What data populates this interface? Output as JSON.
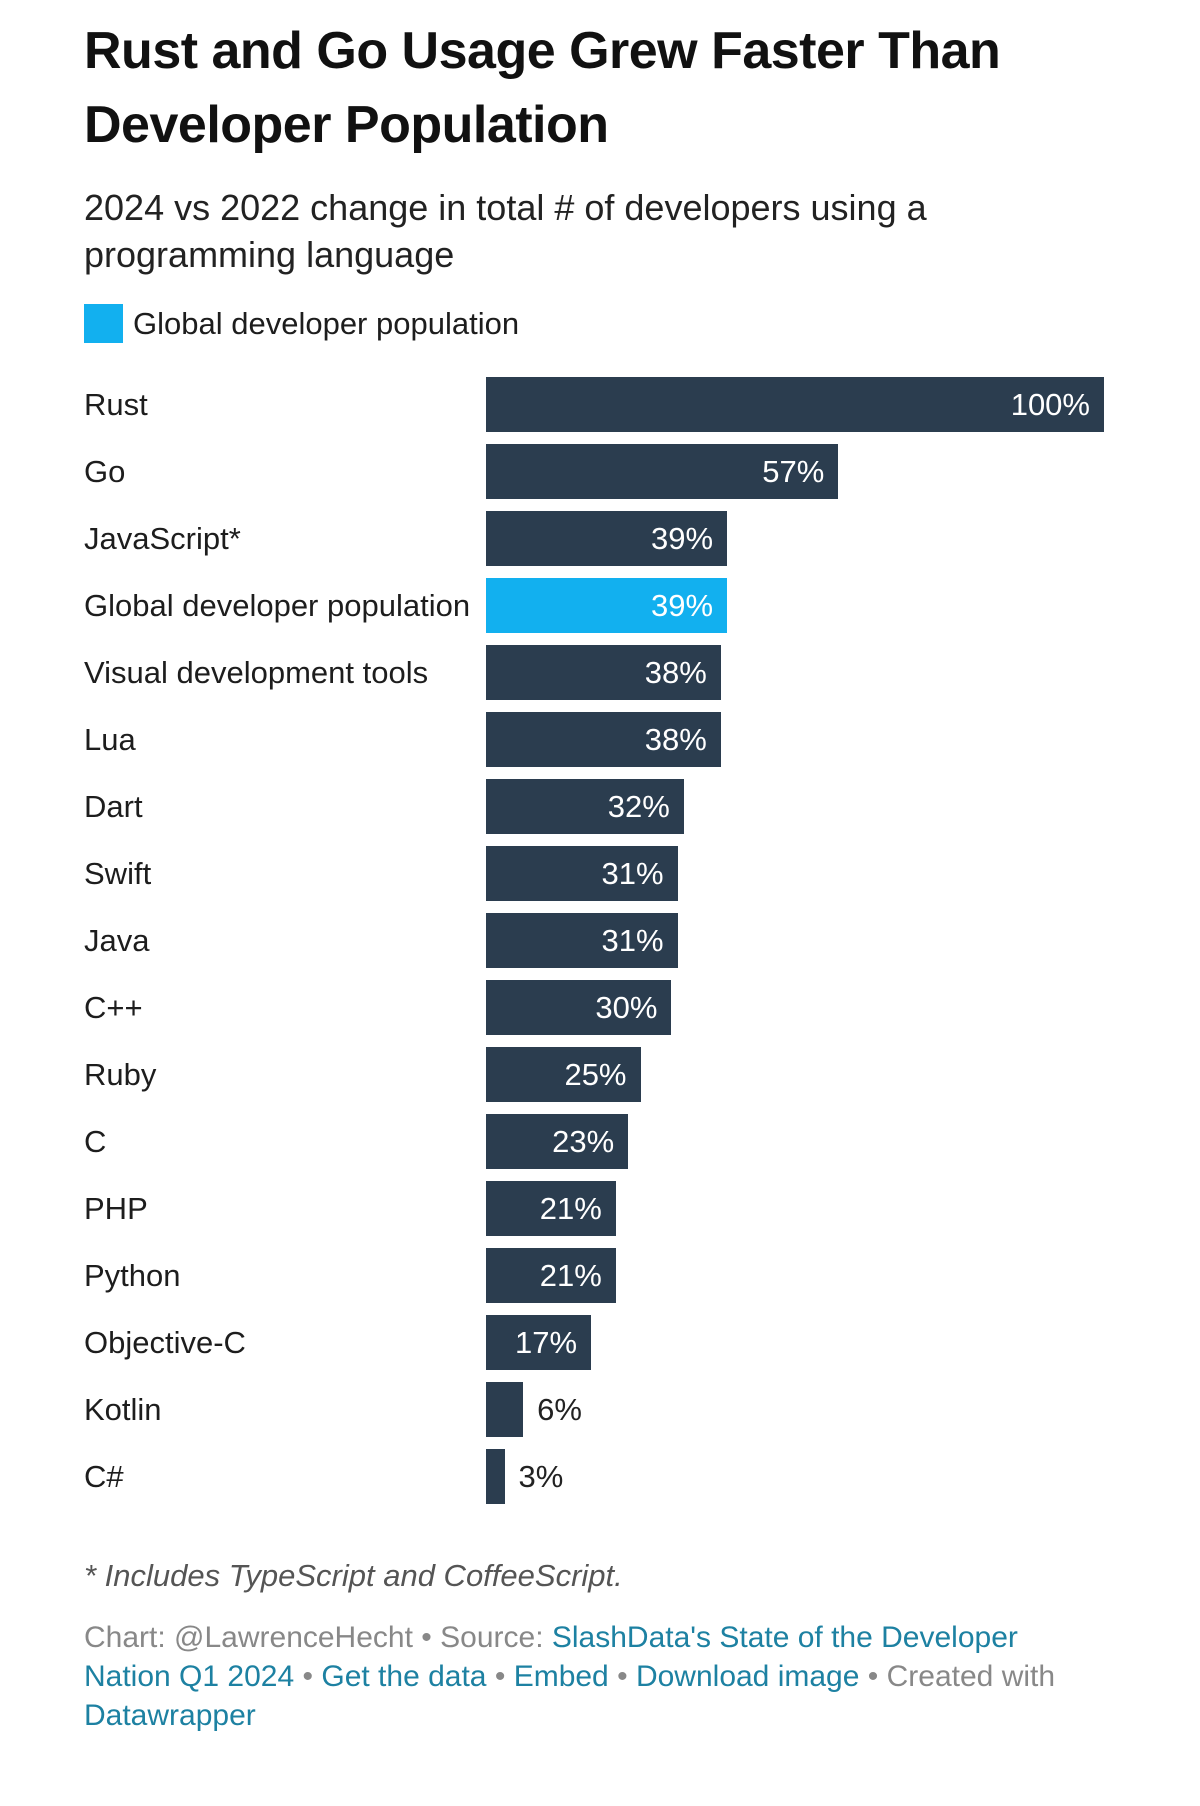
{
  "chart_data": {
    "type": "bar",
    "orientation": "horizontal",
    "title": "Rust and Go Usage Grew Faster Than Developer Population",
    "subtitle": "2024 vs 2022 change in total # of developers using a programming language",
    "highlight": {
      "name": "Global developer population",
      "color": "#12b0ef"
    },
    "color": "#2b3d4f",
    "categories": [
      "Rust",
      "Go",
      "JavaScript*",
      "Global developer population",
      "Visual development tools",
      "Lua",
      "Dart",
      "Swift",
      "Java",
      "C++",
      "Ruby",
      "C",
      "PHP",
      "Python",
      "Objective-C",
      "Kotlin",
      "C#"
    ],
    "values": [
      100,
      57,
      39,
      39,
      38,
      38,
      32,
      31,
      31,
      30,
      25,
      23,
      21,
      21,
      17,
      6,
      3
    ],
    "value_labels": [
      "100%",
      "57%",
      "39%",
      "39%",
      "38%",
      "38%",
      "32%",
      "31%",
      "31%",
      "30%",
      "25%",
      "23%",
      "21%",
      "21%",
      "17%",
      "6%",
      "3%"
    ],
    "xlim": [
      0,
      100
    ],
    "note": "* Includes TypeScript and CoffeeScript.",
    "separator": "•",
    "credits": [
      {
        "text": "Chart: @LawrenceHecht"
      },
      {
        "text": "Source:",
        "link": "SlashData's State of the Developer Nation Q1 2024"
      },
      {
        "link": "Get the data"
      },
      {
        "link": "Embed"
      },
      {
        "link": "Download image"
      },
      {
        "text": "Created with",
        "link": "Datawrapper"
      }
    ]
  }
}
